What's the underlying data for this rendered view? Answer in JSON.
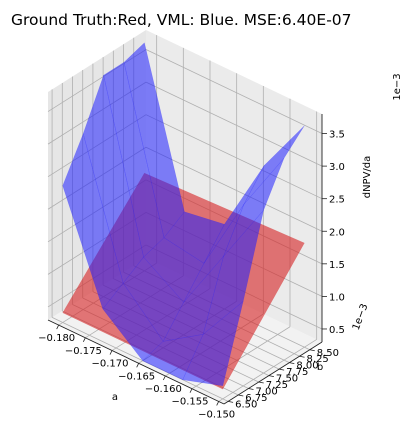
{
  "chart_data": {
    "type": "surface3d",
    "title": "Ground Truth:Red, VML: Blue. MSE:6.40E-07",
    "xlabel": "a",
    "ylabel": "b",
    "zlabel": "dNPV/da",
    "xlim": [
      -0.182,
      -0.149
    ],
    "ylim": [
      0.0064,
      0.0088
    ],
    "zlim": [
      0.0003,
      0.0038
    ],
    "x_ticks": [
      -0.18,
      -0.175,
      -0.17,
      -0.165,
      -0.16,
      -0.155,
      -0.15
    ],
    "x_tick_labels": [
      "−0.180",
      "−0.175",
      "−0.170",
      "−0.165",
      "−0.160",
      "−0.155",
      "−0.150"
    ],
    "y_ticks": [
      0.0065,
      0.00675,
      0.007,
      0.00725,
      0.0075,
      0.00775,
      0.008,
      0.00825,
      0.0085
    ],
    "y_tick_labels": [
      "6.50",
      "6.75",
      "7.00",
      "7.25",
      "7.50",
      "7.75",
      "8.00",
      "8.25",
      "8.50"
    ],
    "y_offset_label": "1e−3",
    "z_ticks": [
      0.0005,
      0.001,
      0.0015,
      0.002,
      0.0025,
      0.003,
      0.0035
    ],
    "z_tick_labels": [
      "0.5",
      "1.0",
      "1.5",
      "2.0",
      "2.5",
      "3.0",
      "3.5"
    ],
    "z_offset_label": "1e−3",
    "grid": true,
    "series": [
      {
        "name": "Ground Truth",
        "color": "#d62728",
        "surface": {
          "x": [
            -0.18,
            -0.15
          ],
          "y": [
            0.0065,
            0.0085
          ],
          "z": [
            [
              0.00045,
              0.0018
            ],
            [
              0.00045,
              0.0019
            ]
          ]
        }
      },
      {
        "name": "VML",
        "color": "#1f1fff",
        "surface": {
          "x": [
            -0.18,
            -0.1725,
            -0.165,
            -0.1575,
            -0.15
          ],
          "y": [
            0.0065,
            0.007,
            0.0075,
            0.008,
            0.0085
          ],
          "z": [
            [
              0.0024,
              0.003,
              0.0037,
              0.0037,
              0.0038
            ],
            [
              0.0008,
              0.001,
              0.0012,
              0.0013,
              0.0015
            ],
            [
              0.0003,
              0.0004,
              0.0008,
              0.0012,
              0.0016
            ],
            [
              0.0003,
              0.0008,
              0.0018,
              0.0024,
              0.0028
            ],
            [
              0.0005,
              0.0016,
              0.0028,
              0.0034,
              0.0037
            ]
          ]
        }
      }
    ]
  }
}
